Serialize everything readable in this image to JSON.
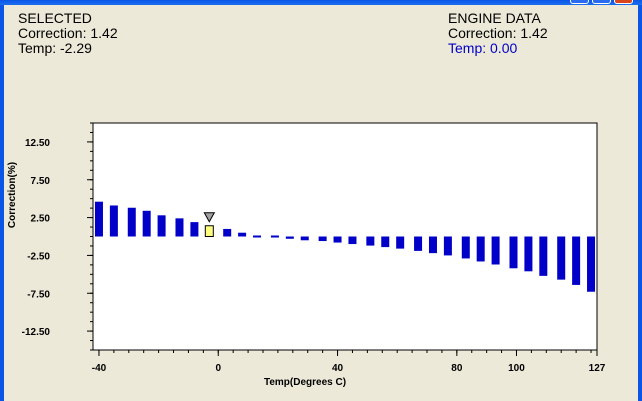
{
  "selected": {
    "heading": "SELECTED",
    "correction": "Correction: 1.42",
    "temp": "Temp: -2.29"
  },
  "engine": {
    "heading": "ENGINE DATA",
    "correction": "Correction: 1.42",
    "temp": "Temp: 0.00"
  },
  "colors": {
    "bar": "#0000c8",
    "selected_bar": "#ffff80",
    "engine_temp_text": "#0000c8",
    "window_bg": "#ece9d8"
  },
  "chart_data": {
    "type": "bar",
    "xlabel": "Temp(Degrees C)",
    "ylabel": "Correction(%)",
    "ylim": [
      -15,
      15
    ],
    "xlim": [
      -42,
      127
    ],
    "y_ticks": [
      "12.50",
      "7.50",
      "2.50",
      "-2.50",
      "-7.50",
      "-12.50"
    ],
    "x_ticks": [
      "-40",
      "0",
      "40",
      "80",
      "100",
      "127"
    ],
    "selected_index": 7,
    "marker": "selected-temperature-marker",
    "x": [
      -40,
      -35,
      -29,
      -24,
      -19,
      -13,
      -8,
      -3,
      3,
      8,
      13,
      19,
      24,
      29,
      35,
      40,
      45,
      51,
      56,
      61,
      67,
      72,
      77,
      83,
      88,
      93,
      99,
      104,
      109,
      115,
      120,
      125
    ],
    "values": [
      4.6,
      4.1,
      3.8,
      3.4,
      2.8,
      2.4,
      1.9,
      1.42,
      1.0,
      0.5,
      0.2,
      0.0,
      -0.3,
      -0.5,
      -0.6,
      -0.8,
      -1.0,
      -1.2,
      -1.4,
      -1.6,
      -1.9,
      -2.2,
      -2.5,
      -2.9,
      -3.3,
      -3.7,
      -4.2,
      -4.6,
      -5.2,
      -5.7,
      -6.4,
      -7.3
    ]
  }
}
